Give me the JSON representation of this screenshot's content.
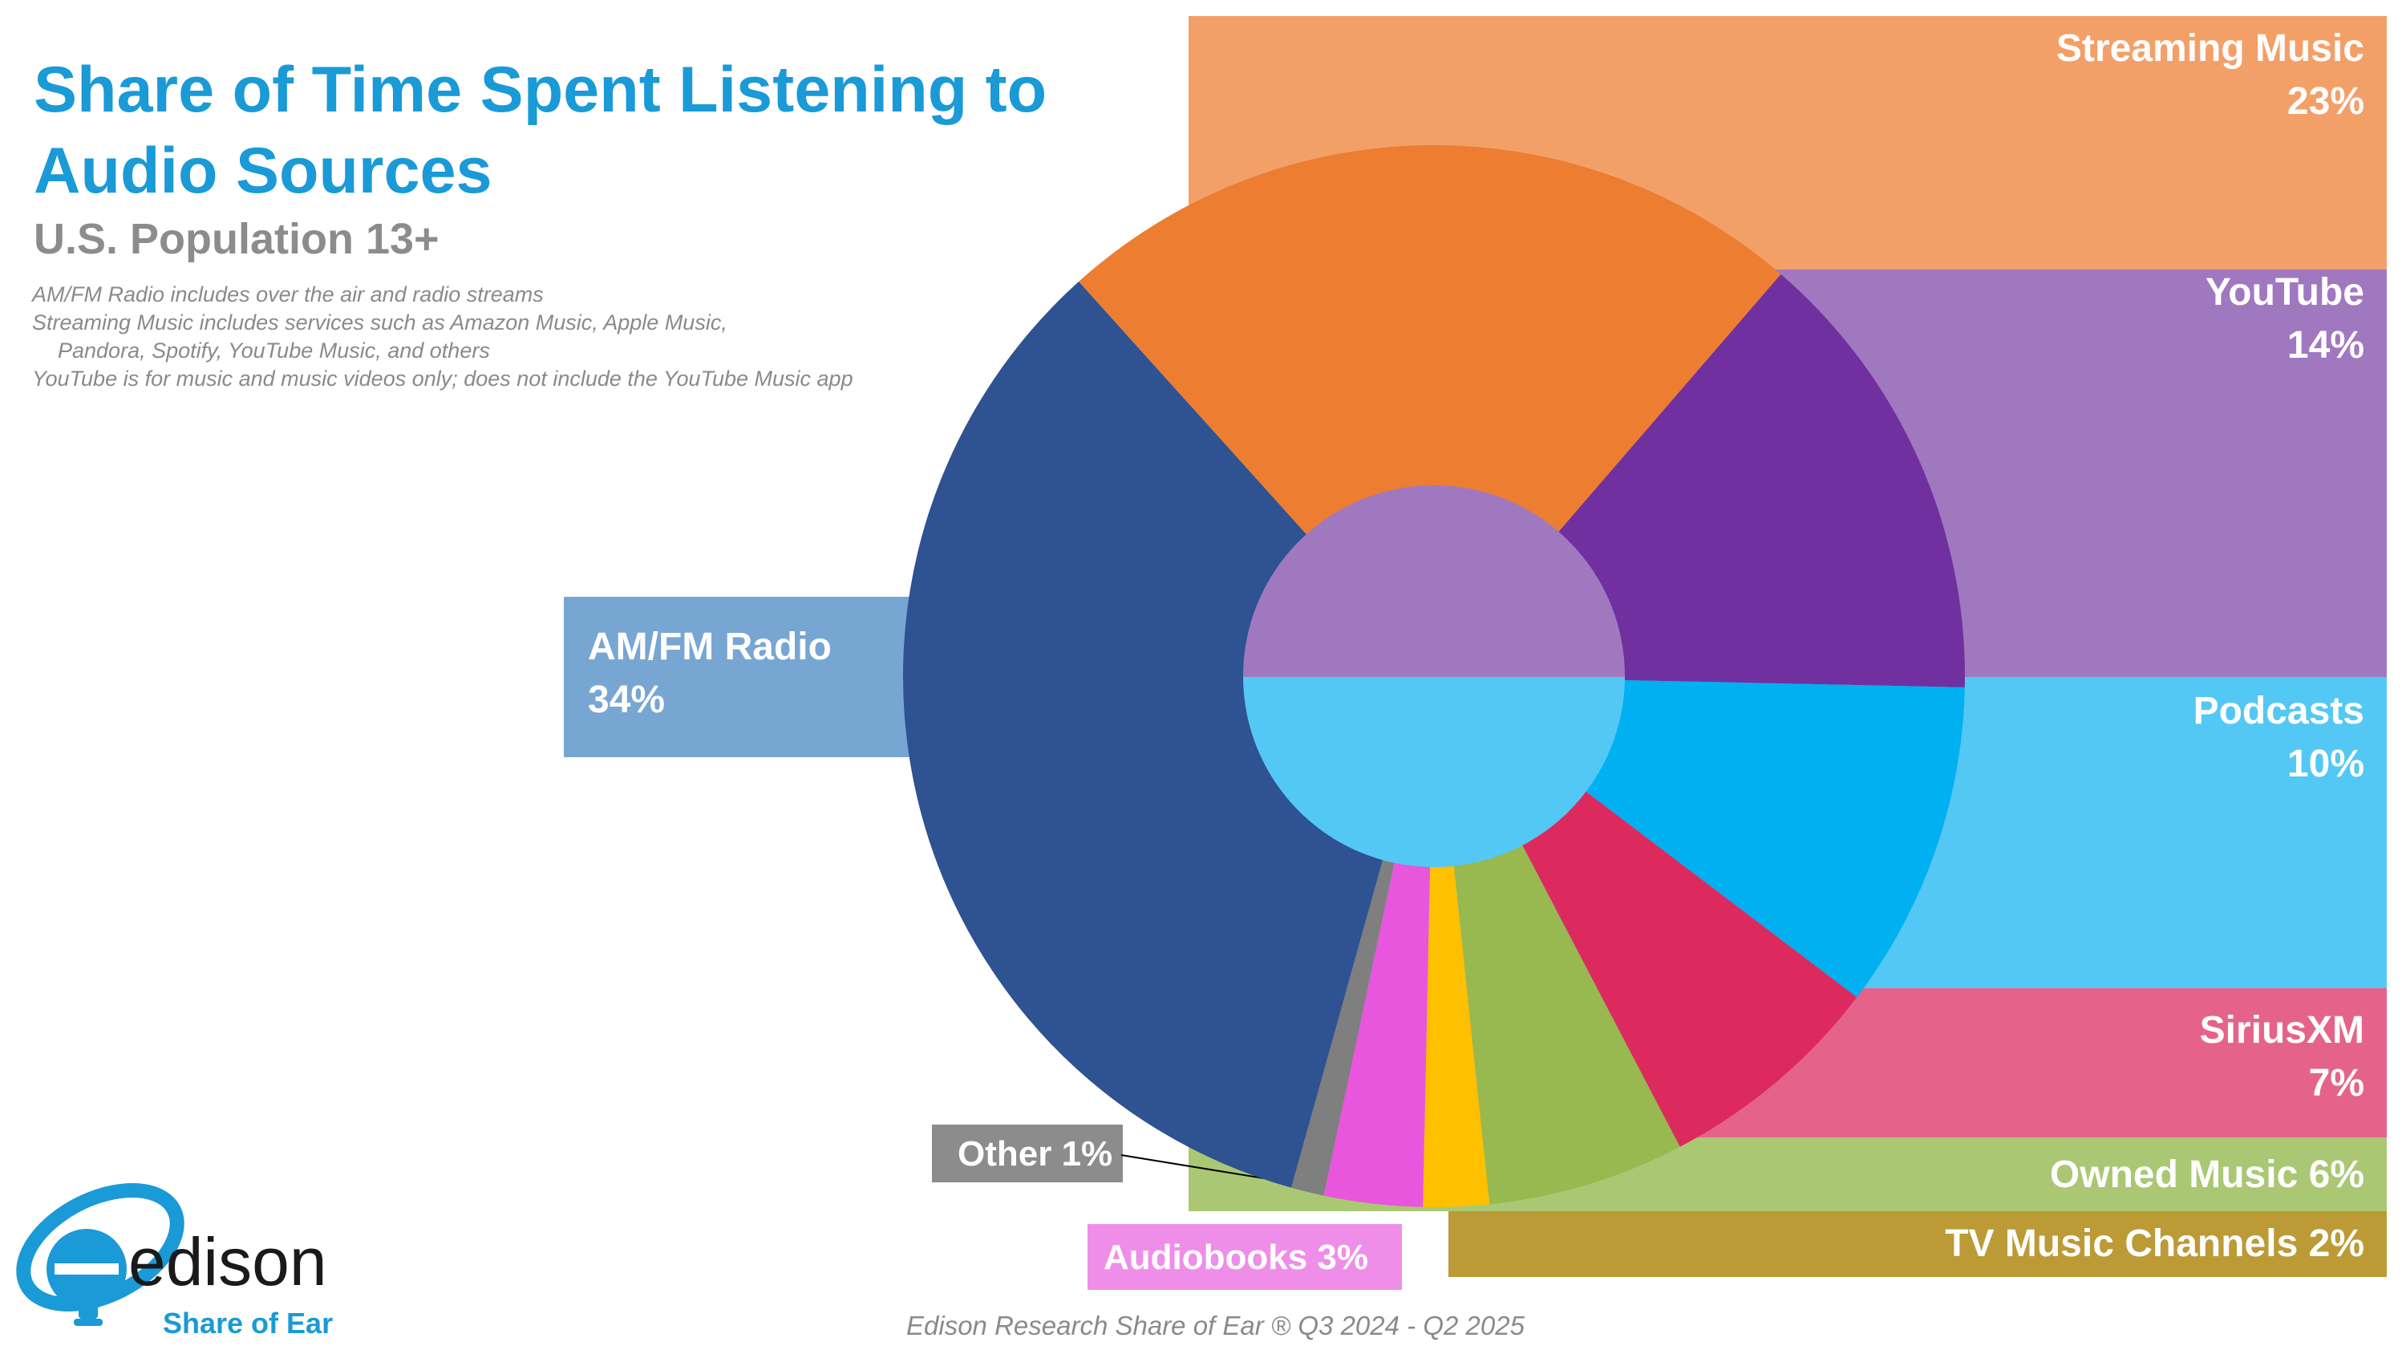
{
  "title": "Share of Time Spent Listening to Audio Sources",
  "subtitle": "U.S. Population 13+",
  "notes": [
    "AM/FM Radio includes over the air and radio streams",
    "Streaming Music includes services such as Amazon Music, Apple Music,",
    "Pandora, Spotify, YouTube Music, and others",
    "YouTube is for music and music videos only; does not include the YouTube Music app"
  ],
  "footer": "Edison Research Share of Ear ® Q3 2024 - Q2 2025",
  "logo": {
    "wordmark": "edison",
    "tagline": "Share of Ear"
  },
  "chart_data": {
    "type": "pie",
    "title": "Share of Time Spent Listening to Audio Sources",
    "subtitle": "U.S. Population 13+",
    "unit": "%",
    "slices": [
      {
        "name": "Streaming Music",
        "value": 23,
        "label": "23%",
        "color": "#ed7d31",
        "label_color": "#f3a068"
      },
      {
        "name": "YouTube",
        "value": 14,
        "label": "14%",
        "color": "#7030a0",
        "label_color": "#a078c0"
      },
      {
        "name": "Podcasts",
        "value": 10,
        "label": "10%",
        "color": "#00b0f0",
        "label_color": "#54c8f4"
      },
      {
        "name": "SiriusXM",
        "value": 7,
        "label": "7%",
        "color": "#dd2a5e",
        "label_color": "#e5638a"
      },
      {
        "name": "Owned Music",
        "value": 6,
        "label": "6%",
        "color": "#97b94f",
        "label_color": "#aac774"
      },
      {
        "name": "TV Music Channels",
        "value": 2,
        "label": "2%",
        "color": "#ffc000",
        "label_color": "#bc9a36"
      },
      {
        "name": "Audiobooks",
        "value": 3,
        "label": "3%",
        "color": "#e756dc",
        "label_color": "#ef8ee9"
      },
      {
        "name": "Other",
        "value": 1,
        "label": "1%",
        "color": "#7f7f7f",
        "label_color": "#8c8c8c"
      },
      {
        "name": "AM/FM Radio",
        "value": 34,
        "label": "34%",
        "color": "#2e5292",
        "label_color": "#78a6d2"
      }
    ]
  }
}
